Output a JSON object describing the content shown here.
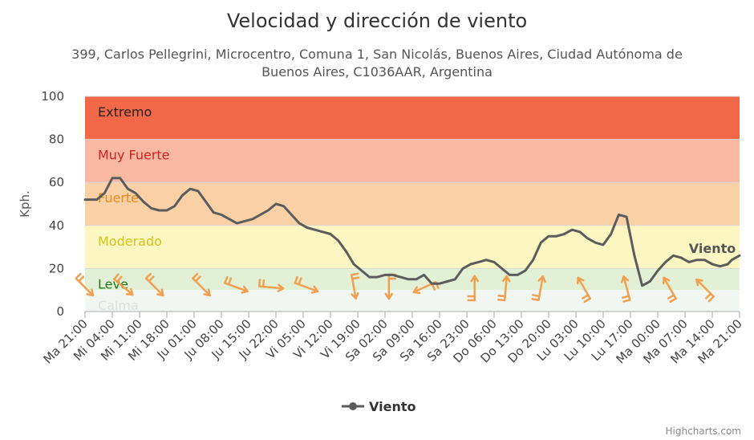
{
  "chart_data": {
    "type": "line",
    "title": "Velocidad y dirección de viento",
    "subtitle_lines": [
      "399, Carlos Pellegrini, Microcentro, Comuna 1, San Nicolás, Buenos Aires, Ciudad Autónoma de",
      "Buenos Aires, C1036AAR, Argentina"
    ],
    "ylabel": "Kph.",
    "ylim": [
      0,
      100
    ],
    "yticks": [
      0,
      20,
      40,
      60,
      80,
      100
    ],
    "grid": true,
    "x_tick_labels": [
      "Ma 21:00",
      "Mi 04:00",
      "Mi 11:00",
      "Mi 18:00",
      "Ju 01:00",
      "Ju 08:00",
      "Ju 15:00",
      "Ju 22:00",
      "Vi 05:00",
      "Vi 12:00",
      "Vi 19:00",
      "Sa 02:00",
      "Sa 09:00",
      "Sa 16:00",
      "Sa 23:00",
      "Do 06:00",
      "Do 13:00",
      "Do 20:00",
      "Lu 03:00",
      "Lu 10:00",
      "Lu 17:00",
      "Ma 00:00",
      "Ma 07:00",
      "Ma 14:00",
      "Ma 21:00"
    ],
    "x_hours_range": [
      0,
      168
    ],
    "bands": [
      {
        "label": "Extremo",
        "from": 80,
        "to": 100,
        "color": "#f4684a",
        "label_color": "#222222"
      },
      {
        "label": "Muy Fuerte",
        "from": 60,
        "to": 80,
        "color": "#f8b8a2",
        "label_color": "#cc2222"
      },
      {
        "label": "Fuerte",
        "from": 40,
        "to": 60,
        "color": "#fad1a6",
        "label_color": "#e88a1a"
      },
      {
        "label": "Moderado",
        "from": 20,
        "to": 40,
        "color": "#fcf6c2",
        "label_color": "#d4c41a"
      },
      {
        "label": "Leve",
        "from": 10,
        "to": 20,
        "color": "#e2f0d6",
        "label_color": "#1a7a1a"
      },
      {
        "label": "Calma",
        "from": 0,
        "to": 10,
        "color": "#f2f6f2",
        "label_color": "#dddddd"
      }
    ],
    "series": [
      {
        "name": "Viento",
        "color": "#5c5c5c",
        "x": [
          0,
          3,
          5,
          7,
          9,
          11,
          13,
          15,
          17,
          19,
          21,
          23,
          25,
          27,
          29,
          31,
          33,
          35,
          37,
          39,
          41,
          43,
          45,
          47,
          49,
          51,
          53,
          55,
          57,
          59,
          61,
          63,
          65,
          67,
          69,
          71,
          73,
          75,
          77,
          79,
          81,
          83,
          85,
          87,
          89,
          91,
          93,
          95,
          97,
          99,
          101,
          103,
          105,
          107,
          109,
          111,
          113,
          115,
          117,
          119,
          121,
          123,
          125,
          127,
          129,
          131,
          133,
          135,
          137,
          139,
          141,
          143,
          145,
          147,
          149,
          151,
          153,
          155,
          157,
          159,
          161,
          163,
          165,
          166,
          168
        ],
        "values": [
          52,
          52,
          55,
          62,
          62,
          57,
          55,
          51,
          48,
          47,
          47,
          49,
          54,
          57,
          56,
          51,
          46,
          45,
          43,
          41,
          42,
          43,
          45,
          47,
          50,
          49,
          45,
          41,
          39,
          38,
          37,
          36,
          33,
          28,
          22,
          19,
          16,
          16,
          17,
          17,
          16,
          15,
          15,
          17,
          13,
          13,
          14,
          15,
          20,
          22,
          23,
          24,
          23,
          20,
          17,
          17,
          19,
          24,
          32,
          35,
          35,
          36,
          38,
          37,
          34,
          32,
          31,
          36,
          45,
          44,
          26,
          12,
          14,
          19,
          23,
          26,
          25,
          23,
          24,
          24,
          22,
          21,
          22,
          24,
          26
        ]
      }
    ],
    "direction_arrows": [
      {
        "hour": 0,
        "angle": 315
      },
      {
        "hour": 10,
        "angle": 310
      },
      {
        "hour": 18,
        "angle": 315
      },
      {
        "hour": 30,
        "angle": 315
      },
      {
        "hour": 39,
        "angle": 290
      },
      {
        "hour": 48,
        "angle": 275
      },
      {
        "hour": 57,
        "angle": 290
      },
      {
        "hour": 69,
        "angle": 350
      },
      {
        "hour": 78,
        "angle": 0
      },
      {
        "hour": 87,
        "angle": 65
      },
      {
        "hour": 100,
        "angle": 180
      },
      {
        "hour": 108,
        "angle": 185
      },
      {
        "hour": 117,
        "angle": 190
      },
      {
        "hour": 128,
        "angle": 150
      },
      {
        "hour": 139,
        "angle": 165
      },
      {
        "hour": 150,
        "angle": 150
      },
      {
        "hour": 159,
        "angle": 135
      }
    ],
    "legend": {
      "position": "bottom-center",
      "label": "Viento"
    },
    "series_end_label": "Viento",
    "credits": "Highcharts.com",
    "arrow_color": "#f0a050"
  }
}
